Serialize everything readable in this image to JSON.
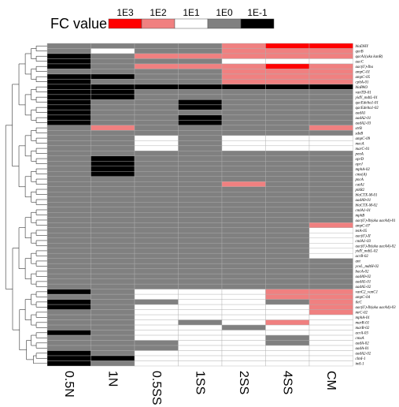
{
  "chart_data": {
    "type": "heatmap",
    "legend": {
      "title": "FC value",
      "ticks": [
        "1E3",
        "1E2",
        "1E1",
        "1E0",
        "1E-1"
      ],
      "colors": [
        "#ff0000",
        "#f08080",
        "#ffffff",
        "#808080",
        "#000000"
      ]
    },
    "columns": [
      "0.5N",
      "1N",
      "0.5SS",
      "1SS",
      "2SS",
      "4SS",
      "CM"
    ],
    "rows": [
      "blaDHY",
      "qnrB",
      "qacA1(aka kanR)",
      "aacC",
      "aac(6')-Iba",
      "ampC-01",
      "ampC-05",
      "cphA-01",
      "blaPAO",
      "vanTD-01",
      "yidY_mdtL-01",
      "qacEdelta1-01",
      "qacEdelta1-02",
      "aadA1",
      "aadA2-01",
      "aadA2-03",
      "strB",
      "sdeB",
      "ampC-09",
      "mecA",
      "marC-01",
      "penA",
      "oprD",
      "oprJ",
      "mphA-02",
      "cmx(A)",
      "pncA",
      "catA1",
      "pikR2",
      "blaCTX-M-01",
      "aadA9-01",
      "blaCTX-M-02",
      "cmlA1-01",
      "mphB",
      "aac(6')-Ib(aka aacA4)-01",
      "ampC-07",
      "tetA-05",
      "aac(6')-II",
      "cmlA1-03",
      "aac(6')-Ib(aka aacA4)-02",
      "yidY_mdtL-02",
      "acrB-02",
      "ant",
      "yceL_mdtH-02",
      "bacA-02",
      "aadA9-02",
      "aadA5-01",
      "aadA5-02",
      "vanC2_vanC1",
      "ampC-04",
      "ileC",
      "aac(6')-Ib(aka aacA4)-03",
      "mrC-02",
      "mphA-01",
      "marR-01",
      "marR-02",
      "acrA-03",
      "cmxA",
      "aadA-02",
      "aadA-01",
      "aadA2-02",
      "clmI-1",
      "intI-1"
    ],
    "values": [
      [
        3,
        3,
        3,
        3,
        1,
        0,
        0
      ],
      [
        3,
        2,
        3,
        3,
        1,
        1,
        1
      ],
      [
        4,
        3,
        1,
        1,
        1,
        1,
        1
      ],
      [
        4,
        3,
        3,
        3,
        2,
        2,
        2
      ],
      [
        4,
        3,
        1,
        1,
        1,
        0,
        1
      ],
      [
        3,
        3,
        3,
        3,
        1,
        1,
        1
      ],
      [
        4,
        4,
        3,
        3,
        1,
        1,
        1
      ],
      [
        4,
        3,
        3,
        3,
        1,
        1,
        1
      ],
      [
        4,
        4,
        4,
        4,
        4,
        4,
        4
      ],
      [
        4,
        4,
        3,
        3,
        3,
        3,
        3
      ],
      [
        4,
        4,
        3,
        3,
        3,
        3,
        3
      ],
      [
        4,
        3,
        3,
        4,
        3,
        3,
        3
      ],
      [
        4,
        3,
        3,
        4,
        3,
        3,
        3
      ],
      [
        4,
        3,
        3,
        3,
        3,
        3,
        3
      ],
      [
        4,
        3,
        3,
        4,
        3,
        3,
        3
      ],
      [
        4,
        3,
        3,
        4,
        3,
        3,
        3
      ],
      [
        3,
        1,
        3,
        3,
        3,
        3,
        1
      ],
      [
        3,
        3,
        3,
        3,
        3,
        3,
        3
      ],
      [
        3,
        3,
        2,
        3,
        2,
        2,
        2
      ],
      [
        3,
        3,
        2,
        3,
        2,
        2,
        2
      ],
      [
        3,
        3,
        2,
        3,
        2,
        2,
        2
      ],
      [
        3,
        3,
        3,
        3,
        3,
        3,
        3
      ],
      [
        3,
        4,
        3,
        3,
        3,
        3,
        3
      ],
      [
        3,
        4,
        3,
        3,
        3,
        3,
        3
      ],
      [
        3,
        4,
        3,
        3,
        3,
        3,
        3
      ],
      [
        3,
        4,
        3,
        3,
        3,
        3,
        3
      ],
      [
        3,
        3,
        3,
        3,
        3,
        3,
        3
      ],
      [
        3,
        3,
        3,
        3,
        1,
        3,
        3
      ],
      [
        3,
        3,
        3,
        3,
        3,
        3,
        3
      ],
      [
        3,
        3,
        3,
        3,
        3,
        3,
        3
      ],
      [
        3,
        3,
        3,
        3,
        3,
        3,
        3
      ],
      [
        3,
        3,
        3,
        3,
        3,
        3,
        3
      ],
      [
        3,
        3,
        3,
        3,
        3,
        3,
        3
      ],
      [
        3,
        3,
        3,
        3,
        3,
        3,
        3
      ],
      [
        3,
        3,
        3,
        3,
        3,
        3,
        3
      ],
      [
        3,
        3,
        3,
        3,
        3,
        3,
        1
      ],
      [
        3,
        3,
        3,
        3,
        3,
        3,
        2
      ],
      [
        3,
        3,
        3,
        3,
        3,
        3,
        2
      ],
      [
        3,
        3,
        3,
        3,
        3,
        3,
        2
      ],
      [
        3,
        3,
        3,
        3,
        3,
        3,
        2
      ],
      [
        3,
        3,
        3,
        3,
        3,
        3,
        2
      ],
      [
        3,
        3,
        3,
        3,
        3,
        3,
        2
      ],
      [
        3,
        3,
        3,
        3,
        3,
        3,
        3
      ],
      [
        3,
        3,
        3,
        3,
        3,
        3,
        3
      ],
      [
        3,
        3,
        3,
        3,
        3,
        3,
        3
      ],
      [
        3,
        3,
        3,
        3,
        3,
        3,
        3
      ],
      [
        3,
        3,
        3,
        3,
        3,
        3,
        3
      ],
      [
        3,
        3,
        3,
        3,
        3,
        3,
        3
      ],
      [
        4,
        3,
        2,
        2,
        2,
        1,
        1
      ],
      [
        3,
        3,
        2,
        2,
        2,
        1,
        1
      ],
      [
        4,
        3,
        3,
        2,
        2,
        3,
        1
      ],
      [
        4,
        3,
        2,
        2,
        2,
        2,
        1
      ],
      [
        3,
        3,
        2,
        2,
        2,
        2,
        1
      ],
      [
        3,
        3,
        2,
        2,
        2,
        2,
        2
      ],
      [
        3,
        3,
        2,
        3,
        2,
        1,
        2
      ],
      [
        3,
        3,
        2,
        2,
        3,
        2,
        2
      ],
      [
        4,
        3,
        2,
        2,
        2,
        2,
        2
      ],
      [
        3,
        3,
        2,
        2,
        2,
        3,
        2
      ],
      [
        3,
        3,
        3,
        2,
        2,
        3,
        2
      ],
      [
        3,
        3,
        3,
        2,
        2,
        2,
        2
      ],
      [
        4,
        3,
        2,
        2,
        2,
        2,
        2
      ],
      [
        4,
        4,
        2,
        2,
        2,
        2,
        2
      ],
      [
        4,
        3,
        2,
        2,
        2,
        2,
        2
      ]
    ]
  }
}
